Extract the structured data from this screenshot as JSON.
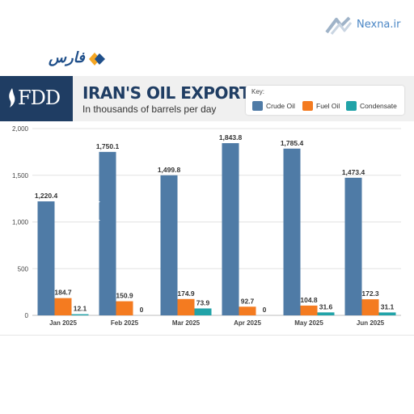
{
  "watermark": {
    "nexna_text": "Nexna.ir",
    "nexna_color": "#4a86c5",
    "nexna_icon": "nexna-logo-icon"
  },
  "fars": {
    "text": "فارس",
    "icon": "fars-logo-icon"
  },
  "header": {
    "fdd_text": "FDD",
    "title": "IRAN'S OIL EXPORTS",
    "subtitle": "In thousands of barrels per day",
    "key_title": "Key:"
  },
  "colors": {
    "crude": "#4f7ba6",
    "fuel": "#f47b20",
    "condensate": "#21a3a8",
    "header_navy": "#1f3d63"
  },
  "chart_data": {
    "type": "bar",
    "categories": [
      "Jan 2025",
      "Feb 2025",
      "Mar 2025",
      "Apr 2025",
      "May 2025",
      "Jun 2025"
    ],
    "series": [
      {
        "name": "Crude Oil",
        "color": "#4f7ba6",
        "values": [
          1220.4,
          1750.1,
          1499.8,
          1843.8,
          1785.4,
          1473.4
        ],
        "labels": [
          "1,220.4",
          "1,750.1",
          "1,499.8",
          "1,843.8",
          "1,785.4",
          "1,473.4"
        ]
      },
      {
        "name": "Fuel Oil",
        "color": "#f47b20",
        "values": [
          184.7,
          150.9,
          174.9,
          92.7,
          104.8,
          172.3
        ],
        "labels": [
          "184.7",
          "150.9",
          "174.9",
          "92.7",
          "104.8",
          "172.3"
        ]
      },
      {
        "name": "Condensate",
        "color": "#21a3a8",
        "values": [
          12.1,
          0,
          73.9,
          0,
          31.6,
          31.1
        ],
        "labels": [
          "12.1",
          "0",
          "73.9",
          "0",
          "31.6",
          "31.1"
        ]
      }
    ],
    "yticks": [
      0,
      500,
      1000,
      1500,
      2000
    ],
    "ytick_labels": [
      "0",
      "500",
      "1,000",
      "1,500",
      "2,000"
    ],
    "ylim": [
      0,
      2000
    ],
    "grid": true,
    "legend": "top-right"
  }
}
